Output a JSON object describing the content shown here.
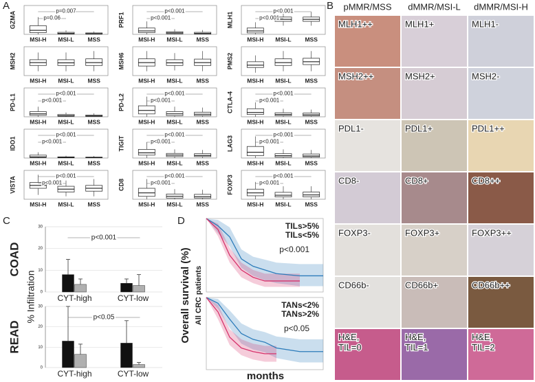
{
  "panel_labels": [
    "A",
    "B",
    "C",
    "D"
  ],
  "panel_a": {
    "groups": [
      "MSI-H",
      "MSI-L",
      "MSS"
    ],
    "ylim": [
      0,
      100
    ],
    "plots": [
      {
        "gene": "GZMA",
        "pvalues": [
          "p=0.007",
          "p=0.06"
        ],
        "boxes": [
          [
            0,
            6,
            14,
            30,
            60
          ],
          [
            0,
            1,
            3,
            7,
            14
          ],
          [
            0,
            1,
            2,
            5,
            10
          ]
        ]
      },
      {
        "gene": "PRF1",
        "pvalues": [
          "p<0.001",
          "p<0.001"
        ],
        "boxes": [
          [
            0,
            6,
            12,
            22,
            45
          ],
          [
            0,
            2,
            5,
            9,
            18
          ],
          [
            0,
            1,
            3,
            7,
            15
          ]
        ]
      },
      {
        "gene": "MLH1",
        "pvalues": [
          "p<0.001",
          "p<0.001"
        ],
        "boxes": [
          [
            0,
            5,
            12,
            22,
            42
          ],
          [
            30,
            45,
            52,
            60,
            75
          ],
          [
            30,
            45,
            52,
            60,
            78
          ]
        ]
      },
      {
        "gene": "MSH2",
        "pvalues": [],
        "boxes": [
          [
            15,
            35,
            45,
            55,
            80
          ],
          [
            15,
            35,
            44,
            55,
            80
          ],
          [
            15,
            35,
            45,
            58,
            85
          ]
        ]
      },
      {
        "gene": "MSH6",
        "pvalues": [],
        "boxes": [
          [
            15,
            33,
            45,
            58,
            85
          ],
          [
            18,
            35,
            44,
            55,
            78
          ],
          [
            15,
            35,
            45,
            57,
            85
          ]
        ]
      },
      {
        "gene": "PMS2",
        "pvalues": [],
        "boxes": [
          [
            10,
            28,
            36,
            48,
            70
          ],
          [
            15,
            35,
            45,
            58,
            85
          ],
          [
            15,
            38,
            48,
            60,
            85
          ]
        ]
      },
      {
        "gene": "PD-L1",
        "pvalues": [
          "p<0.001",
          "p<0.001"
        ],
        "boxes": [
          [
            0,
            5,
            10,
            18,
            35
          ],
          [
            0,
            2,
            4,
            8,
            15
          ],
          [
            0,
            1,
            3,
            6,
            12
          ]
        ]
      },
      {
        "gene": "PD-L2",
        "pvalues": [
          "p<0.001",
          "p<0.001"
        ],
        "boxes": [
          [
            0,
            10,
            22,
            38,
            70
          ],
          [
            0,
            4,
            10,
            18,
            35
          ],
          [
            0,
            4,
            9,
            16,
            32
          ]
        ]
      },
      {
        "gene": "CTLA-4",
        "pvalues": [
          "p<0.001",
          "p<0.001"
        ],
        "boxes": [
          [
            0,
            8,
            15,
            28,
            50
          ],
          [
            0,
            4,
            8,
            14,
            28
          ],
          [
            0,
            3,
            7,
            13,
            25
          ]
        ]
      },
      {
        "gene": "IDO1",
        "pvalues": [
          "p<0.001",
          "p<0.001"
        ],
        "boxes": [
          [
            0,
            2,
            4,
            10,
            20
          ],
          [
            0,
            1,
            2,
            4,
            8
          ],
          [
            0,
            1,
            2,
            3,
            7
          ]
        ]
      },
      {
        "gene": "TIGIT",
        "pvalues": [
          "p<0.001",
          "p<0.001"
        ],
        "boxes": [
          [
            0,
            10,
            18,
            30,
            55
          ],
          [
            0,
            5,
            10,
            16,
            30
          ],
          [
            0,
            5,
            9,
            15,
            28
          ]
        ]
      },
      {
        "gene": "LAG3",
        "pvalues": [
          "p<0.001",
          "p<0.001"
        ],
        "boxes": [
          [
            0,
            8,
            20,
            40,
            75
          ],
          [
            0,
            3,
            8,
            15,
            30
          ],
          [
            0,
            3,
            7,
            14,
            28
          ]
        ]
      },
      {
        "gene": "VISTA",
        "pvalues": [
          "p<0.001",
          "p<0.001"
        ],
        "boxes": [
          [
            15,
            38,
            48,
            58,
            85
          ],
          [
            10,
            25,
            35,
            45,
            65
          ],
          [
            10,
            28,
            38,
            48,
            70
          ]
        ]
      },
      {
        "gene": "CD8",
        "pvalues": [
          "p<0.001",
          "p<0.001"
        ],
        "boxes": [
          [
            0,
            10,
            22,
            38,
            70
          ],
          [
            0,
            4,
            10,
            18,
            35
          ],
          [
            0,
            4,
            9,
            17,
            33
          ]
        ]
      },
      {
        "gene": "FOXP3",
        "pvalues": [
          "p<0.001",
          "p<0.001"
        ],
        "boxes": [
          [
            0,
            12,
            22,
            35,
            60
          ],
          [
            0,
            8,
            14,
            24,
            45
          ],
          [
            0,
            8,
            15,
            25,
            45
          ]
        ]
      }
    ]
  },
  "panel_b": {
    "columns": [
      "pMMR/MSS",
      "dMMR/MSI-L",
      "dMMR/MSI-H"
    ],
    "rows": [
      [
        "MLH1++",
        "MLH1+",
        "MLH1-"
      ],
      [
        "MSH2++",
        "MSH2+",
        "MSH2-"
      ],
      [
        "PDL1-",
        "PDL1+",
        "PDL1++"
      ],
      [
        "CD8-",
        "CD8+",
        "CD8++"
      ],
      [
        "FOXP3-",
        "FOXP3+",
        "FOXP3++"
      ],
      [
        "CD66b-",
        "CD66b+",
        "CD66b++"
      ],
      [
        "H&E,\nTIL=0",
        "H&E,\nTIL=1",
        "H&E,\nTIL=2"
      ]
    ]
  },
  "panel_c": {
    "ylabel": "% Infiltration",
    "ylim": [
      0,
      30
    ],
    "yticks": [
      0,
      10,
      20,
      30
    ],
    "categories": [
      "CYT-high",
      "CYT-low"
    ],
    "colors": [
      "#111111",
      "#b0b0b0"
    ],
    "charts": [
      {
        "title": "COAD",
        "p": "p<0.001",
        "values": [
          [
            8,
            4
          ],
          [
            3.5,
            3
          ]
        ],
        "errors": [
          [
            7,
            2
          ],
          [
            2.5,
            5
          ]
        ]
      },
      {
        "title": "READ",
        "p": "p<0.05",
        "values": [
          [
            13,
            12
          ],
          [
            6.5,
            1.5
          ]
        ],
        "errors": [
          [
            17,
            11
          ],
          [
            5,
            1
          ]
        ]
      }
    ]
  },
  "panel_d": {
    "ylabel": "Overall survival (%)",
    "sublabel": "All CRC patients",
    "xlabel": "months",
    "xlim": [
      0,
      100
    ],
    "ylim": [
      0,
      100
    ],
    "plots": [
      {
        "p": "p<0.001",
        "x": [
          0,
          10,
          20,
          30,
          40,
          50,
          60,
          80,
          100
        ],
        "series": [
          {
            "name": "TILs>5%",
            "color": "#2b7bba",
            "values": [
              100,
              90,
              75,
              45,
              35,
              30,
              25,
              22,
              22
            ],
            "lower": [
              100,
              80,
              62,
              33,
              22,
              16,
              12,
              8,
              8
            ],
            "upper": [
              100,
              98,
              88,
              58,
              48,
              44,
              40,
              38,
              38
            ]
          },
          {
            "name": "TILs<5%",
            "color": "#d6336c",
            "values": [
              100,
              85,
              50,
              30,
              20,
              15,
              15,
              15,
              null
            ],
            "lower": [
              100,
              76,
              40,
              20,
              12,
              7,
              7,
              7,
              null
            ],
            "upper": [
              100,
              93,
              60,
              40,
              30,
              25,
              25,
              25,
              null
            ]
          }
        ]
      },
      {
        "p": "p<0.05",
        "x": [
          0,
          10,
          20,
          30,
          40,
          50,
          60,
          80,
          100
        ],
        "series": [
          {
            "name": "TANs<2%",
            "color": "#2b7bba",
            "values": [
              100,
              92,
              70,
              50,
              42,
              38,
              30,
              25,
              25
            ],
            "lower": [
              100,
              84,
              58,
              36,
              28,
              24,
              16,
              10,
              10
            ],
            "upper": [
              100,
              98,
              82,
              64,
              56,
              52,
              46,
              42,
              42
            ]
          },
          {
            "name": "TANs>2%",
            "color": "#d6336c",
            "values": [
              100,
              80,
              45,
              30,
              25,
              22,
              22,
              null,
              null
            ],
            "lower": [
              100,
              70,
              34,
              20,
              14,
              11,
              11,
              null,
              null
            ],
            "upper": [
              100,
              90,
              56,
              42,
              36,
              33,
              33,
              null,
              null
            ]
          }
        ]
      }
    ]
  }
}
